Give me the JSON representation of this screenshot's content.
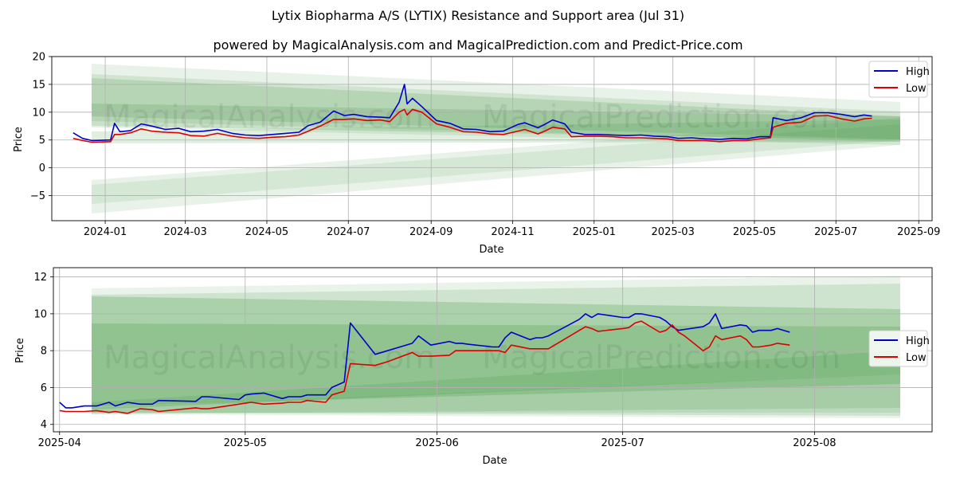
{
  "figure": {
    "title": "Lytix Biopharma A/S (LYTIX) Resistance and Support area (Jul 31)",
    "subtitle": "powered by MagicalAnalysis.com and MagicalPrediction.com and Predict-Price.com",
    "watermark_left": "MagicalAnalysis.com",
    "watermark_right": "MagicalPrediction.com"
  },
  "colors": {
    "high": "#0000cc",
    "low": "#dd0000",
    "band": "#2e8b2e",
    "grid": "#b0b0b0"
  },
  "chart_data": [
    {
      "type": "line",
      "xlabel": "Date",
      "ylabel": "Price",
      "ylim": [
        -9.5,
        20
      ],
      "xlim": [
        "2023-11-22",
        "2025-09-11"
      ],
      "grid": true,
      "legend": "top-right",
      "x_ticks": [
        "2024-01",
        "2024-03",
        "2024-05",
        "2024-07",
        "2024-09",
        "2024-11",
        "2025-01",
        "2025-03",
        "2025-05",
        "2025-07",
        "2025-09"
      ],
      "y_ticks": [
        -5,
        0,
        5,
        10,
        15,
        20
      ],
      "series": [
        {
          "name": "High",
          "color": "#0000cc",
          "x": [
            "2023-12-08",
            "2023-12-15",
            "2023-12-22",
            "2024-01-05",
            "2024-01-08",
            "2024-01-12",
            "2024-01-20",
            "2024-01-28",
            "2024-02-05",
            "2024-02-15",
            "2024-02-25",
            "2024-03-05",
            "2024-03-15",
            "2024-03-25",
            "2024-04-05",
            "2024-04-15",
            "2024-04-25",
            "2024-05-05",
            "2024-05-15",
            "2024-05-25",
            "2024-06-01",
            "2024-06-10",
            "2024-06-20",
            "2024-06-28",
            "2024-07-05",
            "2024-07-15",
            "2024-07-25",
            "2024-08-01",
            "2024-08-08",
            "2024-08-12",
            "2024-08-14",
            "2024-08-18",
            "2024-08-25",
            "2024-09-05",
            "2024-09-15",
            "2024-09-25",
            "2024-10-05",
            "2024-10-15",
            "2024-10-25",
            "2024-11-05",
            "2024-11-10",
            "2024-11-20",
            "2024-11-25",
            "2024-12-01",
            "2024-12-10",
            "2024-12-15",
            "2024-12-25",
            "2025-01-05",
            "2025-01-15",
            "2025-01-25",
            "2025-02-05",
            "2025-02-15",
            "2025-02-25",
            "2025-03-05",
            "2025-03-15",
            "2025-03-25",
            "2025-04-05",
            "2025-04-15",
            "2025-04-25",
            "2025-05-05",
            "2025-05-13",
            "2025-05-15",
            "2025-05-25",
            "2025-06-05",
            "2025-06-15",
            "2025-06-25",
            "2025-07-05",
            "2025-07-15",
            "2025-07-22",
            "2025-07-28"
          ],
          "y": [
            6.3,
            5.3,
            4.9,
            5.0,
            8.0,
            6.5,
            6.7,
            7.9,
            7.5,
            6.9,
            7.1,
            6.5,
            6.6,
            6.9,
            6.2,
            5.9,
            5.8,
            6.0,
            6.2,
            6.4,
            7.6,
            8.2,
            10.2,
            9.4,
            9.6,
            9.2,
            9.1,
            9.0,
            11.8,
            15.0,
            11.5,
            12.5,
            11.0,
            8.5,
            8.0,
            7.0,
            6.9,
            6.5,
            6.6,
            7.8,
            8.1,
            7.2,
            7.8,
            8.6,
            7.9,
            6.4,
            6.0,
            6.0,
            5.9,
            5.8,
            5.9,
            5.7,
            5.6,
            5.3,
            5.4,
            5.2,
            5.1,
            5.3,
            5.2,
            5.6,
            5.6,
            9.0,
            8.5,
            9.0,
            9.9,
            9.9,
            9.6,
            9.2,
            9.5,
            9.3
          ]
        },
        {
          "name": "Low",
          "color": "#dd0000",
          "x": [
            "2023-12-08",
            "2023-12-15",
            "2023-12-22",
            "2024-01-05",
            "2024-01-08",
            "2024-01-12",
            "2024-01-20",
            "2024-01-28",
            "2024-02-05",
            "2024-02-15",
            "2024-02-25",
            "2024-03-05",
            "2024-03-15",
            "2024-03-25",
            "2024-04-05",
            "2024-04-15",
            "2024-04-25",
            "2024-05-05",
            "2024-05-15",
            "2024-05-25",
            "2024-06-01",
            "2024-06-10",
            "2024-06-20",
            "2024-06-28",
            "2024-07-05",
            "2024-07-15",
            "2024-07-25",
            "2024-08-01",
            "2024-08-08",
            "2024-08-12",
            "2024-08-14",
            "2024-08-18",
            "2024-08-25",
            "2024-09-05",
            "2024-09-15",
            "2024-09-25",
            "2024-10-05",
            "2024-10-15",
            "2024-10-25",
            "2024-11-05",
            "2024-11-10",
            "2024-11-20",
            "2024-11-25",
            "2024-12-01",
            "2024-12-10",
            "2024-12-15",
            "2024-12-25",
            "2025-01-05",
            "2025-01-15",
            "2025-01-25",
            "2025-02-05",
            "2025-02-15",
            "2025-02-25",
            "2025-03-05",
            "2025-03-15",
            "2025-03-25",
            "2025-04-05",
            "2025-04-15",
            "2025-04-25",
            "2025-05-05",
            "2025-05-13",
            "2025-05-15",
            "2025-05-25",
            "2025-06-05",
            "2025-06-15",
            "2025-06-25",
            "2025-07-05",
            "2025-07-15",
            "2025-07-22",
            "2025-07-28"
          ],
          "y": [
            5.3,
            4.9,
            4.6,
            4.7,
            6.0,
            6.0,
            6.3,
            7.0,
            6.6,
            6.4,
            6.3,
            5.8,
            5.7,
            6.2,
            5.7,
            5.4,
            5.3,
            5.5,
            5.6,
            5.9,
            6.6,
            7.5,
            8.7,
            8.7,
            8.8,
            8.5,
            8.6,
            8.3,
            10.0,
            10.5,
            9.5,
            10.5,
            10.0,
            7.9,
            7.3,
            6.5,
            6.4,
            6.1,
            6.0,
            6.6,
            6.9,
            6.1,
            6.6,
            7.3,
            7.0,
            5.6,
            5.7,
            5.7,
            5.6,
            5.4,
            5.4,
            5.3,
            5.2,
            4.9,
            4.9,
            4.9,
            4.7,
            4.9,
            4.9,
            5.2,
            5.4,
            7.3,
            8.0,
            8.2,
            9.3,
            9.4,
            8.8,
            8.4,
            8.8,
            8.9
          ]
        }
      ]
    },
    {
      "type": "line",
      "xlabel": "Date",
      "ylabel": "Price",
      "ylim": [
        3.6,
        12.5
      ],
      "xlim": [
        "2025-03-31",
        "2025-08-20"
      ],
      "grid": true,
      "legend": "center-right",
      "x_ticks": [
        "2025-04",
        "2025-05",
        "2025-06",
        "2025-07",
        "2025-08"
      ],
      "y_ticks": [
        4,
        6,
        8,
        10,
        12
      ],
      "series": [
        {
          "name": "High",
          "color": "#0000cc",
          "x": [
            "2025-04-01",
            "2025-04-02",
            "2025-04-03",
            "2025-04-05",
            "2025-04-07",
            "2025-04-09",
            "2025-04-10",
            "2025-04-12",
            "2025-04-14",
            "2025-04-16",
            "2025-04-17",
            "2025-04-23",
            "2025-04-24",
            "2025-04-25",
            "2025-04-30",
            "2025-05-01",
            "2025-05-02",
            "2025-05-04",
            "2025-05-07",
            "2025-05-08",
            "2025-05-10",
            "2025-05-11",
            "2025-05-14",
            "2025-05-15",
            "2025-05-17",
            "2025-05-18",
            "2025-05-22",
            "2025-05-24",
            "2025-05-28",
            "2025-05-29",
            "2025-05-31",
            "2025-06-03",
            "2025-06-04",
            "2025-06-05",
            "2025-06-06",
            "2025-06-10",
            "2025-06-11",
            "2025-06-12",
            "2025-06-13",
            "2025-06-16",
            "2025-06-17",
            "2025-06-18",
            "2025-06-19",
            "2025-06-24",
            "2025-06-25",
            "2025-06-26",
            "2025-06-27",
            "2025-07-01",
            "2025-07-02",
            "2025-07-03",
            "2025-07-04",
            "2025-07-07",
            "2025-07-08",
            "2025-07-09",
            "2025-07-10",
            "2025-07-11",
            "2025-07-14",
            "2025-07-15",
            "2025-07-16",
            "2025-07-17",
            "2025-07-20",
            "2025-07-21",
            "2025-07-22",
            "2025-07-23",
            "2025-07-25",
            "2025-07-26",
            "2025-07-28"
          ],
          "y": [
            5.2,
            4.9,
            4.9,
            5.0,
            5.0,
            5.2,
            5.0,
            5.2,
            5.1,
            5.1,
            5.3,
            5.25,
            5.5,
            5.5,
            5.35,
            5.6,
            5.65,
            5.7,
            5.4,
            5.5,
            5.5,
            5.6,
            5.6,
            6.0,
            6.3,
            9.5,
            7.8,
            8.0,
            8.4,
            8.8,
            8.3,
            8.5,
            8.4,
            8.4,
            8.35,
            8.2,
            8.2,
            8.7,
            9.0,
            8.6,
            8.7,
            8.7,
            8.8,
            9.7,
            10.0,
            9.8,
            10.0,
            9.8,
            9.8,
            10.0,
            10.0,
            9.8,
            9.6,
            9.3,
            9.1,
            9.15,
            9.3,
            9.5,
            10.0,
            9.2,
            9.4,
            9.35,
            9.0,
            9.1,
            9.1,
            9.2,
            9.0
          ]
        },
        {
          "name": "Low",
          "color": "#dd0000",
          "x": [
            "2025-04-01",
            "2025-04-02",
            "2025-04-03",
            "2025-04-05",
            "2025-04-07",
            "2025-04-09",
            "2025-04-10",
            "2025-04-12",
            "2025-04-14",
            "2025-04-16",
            "2025-04-17",
            "2025-04-23",
            "2025-04-24",
            "2025-04-25",
            "2025-04-30",
            "2025-05-01",
            "2025-05-02",
            "2025-05-04",
            "2025-05-07",
            "2025-05-08",
            "2025-05-10",
            "2025-05-11",
            "2025-05-14",
            "2025-05-15",
            "2025-05-17",
            "2025-05-18",
            "2025-05-22",
            "2025-05-24",
            "2025-05-28",
            "2025-05-29",
            "2025-05-31",
            "2025-06-03",
            "2025-06-04",
            "2025-06-05",
            "2025-06-06",
            "2025-06-10",
            "2025-06-11",
            "2025-06-12",
            "2025-06-13",
            "2025-06-16",
            "2025-06-17",
            "2025-06-18",
            "2025-06-19",
            "2025-06-24",
            "2025-06-25",
            "2025-06-26",
            "2025-06-27",
            "2025-07-01",
            "2025-07-02",
            "2025-07-03",
            "2025-07-04",
            "2025-07-07",
            "2025-07-08",
            "2025-07-09",
            "2025-07-10",
            "2025-07-11",
            "2025-07-14",
            "2025-07-15",
            "2025-07-16",
            "2025-07-17",
            "2025-07-20",
            "2025-07-21",
            "2025-07-22",
            "2025-07-23",
            "2025-07-25",
            "2025-07-26",
            "2025-07-28"
          ],
          "y": [
            4.75,
            4.7,
            4.7,
            4.7,
            4.75,
            4.65,
            4.7,
            4.6,
            4.85,
            4.8,
            4.7,
            4.9,
            4.85,
            4.85,
            5.1,
            5.15,
            5.2,
            5.1,
            5.15,
            5.2,
            5.2,
            5.3,
            5.2,
            5.6,
            5.8,
            7.3,
            7.2,
            7.4,
            7.9,
            7.7,
            7.7,
            7.75,
            8.0,
            8.0,
            8.0,
            8.0,
            8.0,
            7.9,
            8.3,
            8.1,
            8.1,
            8.1,
            8.1,
            9.1,
            9.3,
            9.2,
            9.05,
            9.2,
            9.25,
            9.5,
            9.6,
            9.0,
            9.1,
            9.4,
            9.0,
            8.8,
            8.0,
            8.2,
            8.8,
            8.6,
            8.8,
            8.6,
            8.2,
            8.2,
            8.3,
            8.4,
            8.3
          ]
        }
      ]
    }
  ]
}
